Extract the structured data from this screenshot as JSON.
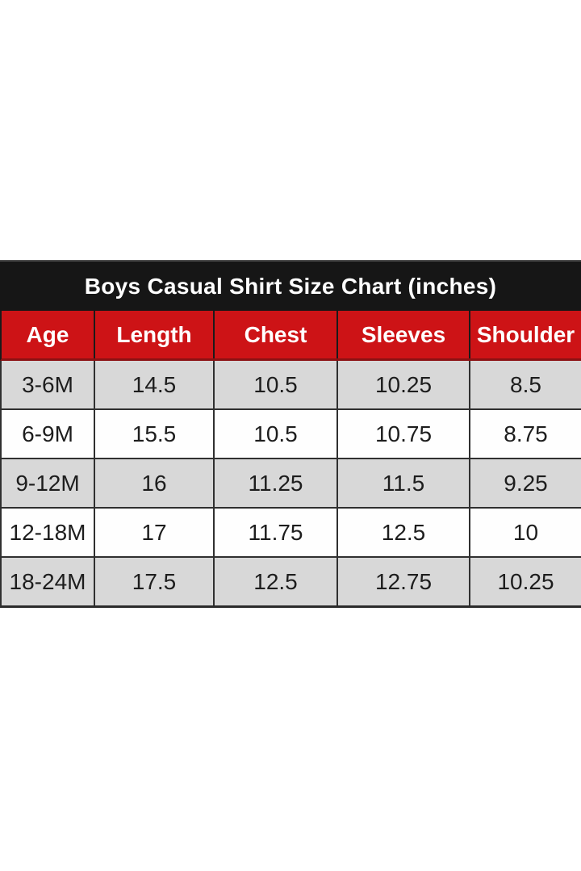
{
  "page": {
    "background": "#ffffff"
  },
  "chart_data": {
    "type": "table",
    "title": "Boys Casual Shirt Size Chart (inches)",
    "units": "inches",
    "columns": [
      "Age",
      "Length",
      "Chest",
      "Sleeves",
      "Shoulder"
    ],
    "rows": [
      [
        "3-6M",
        "14.5",
        "10.5",
        "10.25",
        "8.5"
      ],
      [
        "6-9M",
        "15.5",
        "10.5",
        "10.75",
        "8.75"
      ],
      [
        "9-12M",
        "16",
        "11.25",
        "11.5",
        "9.25"
      ],
      [
        "12-18M",
        "17",
        "11.75",
        "12.5",
        "10"
      ],
      [
        "18-24M",
        "17.5",
        "12.5",
        "12.75",
        "10.25"
      ]
    ]
  },
  "colors": {
    "title_bar_bg": "#161616",
    "title_top_edge": "#4d4d4d",
    "title_text": "#ffffff",
    "header_bg": "#cd1316",
    "header_text": "#ffffff",
    "header_bottom_border": "#8c1113",
    "row_alt_bg": "#d8d8d8",
    "row_bg": "#fefefe",
    "cell_text": "#1d1d1d",
    "grid_border": "#303030"
  }
}
